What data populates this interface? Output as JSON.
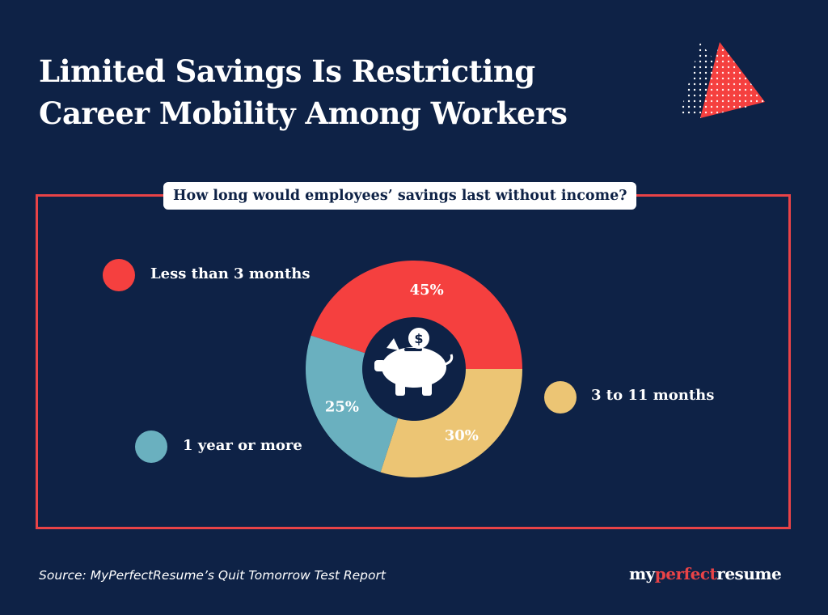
{
  "title": {
    "line1": "Limited Savings Is Restricting",
    "line2": "Career Mobility Among Workers"
  },
  "question": "How long would employees’ savings last without income?",
  "chart_data": {
    "type": "pie",
    "variant": "donut",
    "title": "How long would employees’ savings last without income?",
    "categories": [
      "Less than 3 months",
      "3 to 11 months",
      "1 year or more"
    ],
    "values": [
      45,
      30,
      25
    ],
    "labels": [
      "45%",
      "30%",
      "25%"
    ],
    "colors": [
      "#f5403f",
      "#ecc574",
      "#6ab0bf"
    ],
    "center_icon": "piggy-bank-icon"
  },
  "legend": {
    "less_than_3": "Less than 3 months",
    "three_to_11": "3 to 11 months",
    "one_year": "1 year or more"
  },
  "source": "Source: MyPerfectResume’s Quit Tomorrow Test Report",
  "logo": {
    "part1": "my",
    "part2": "perfect",
    "part3": "resume"
  },
  "colors": {
    "background": "#0e2246",
    "accent": "#e84347",
    "white": "#ffffff"
  }
}
